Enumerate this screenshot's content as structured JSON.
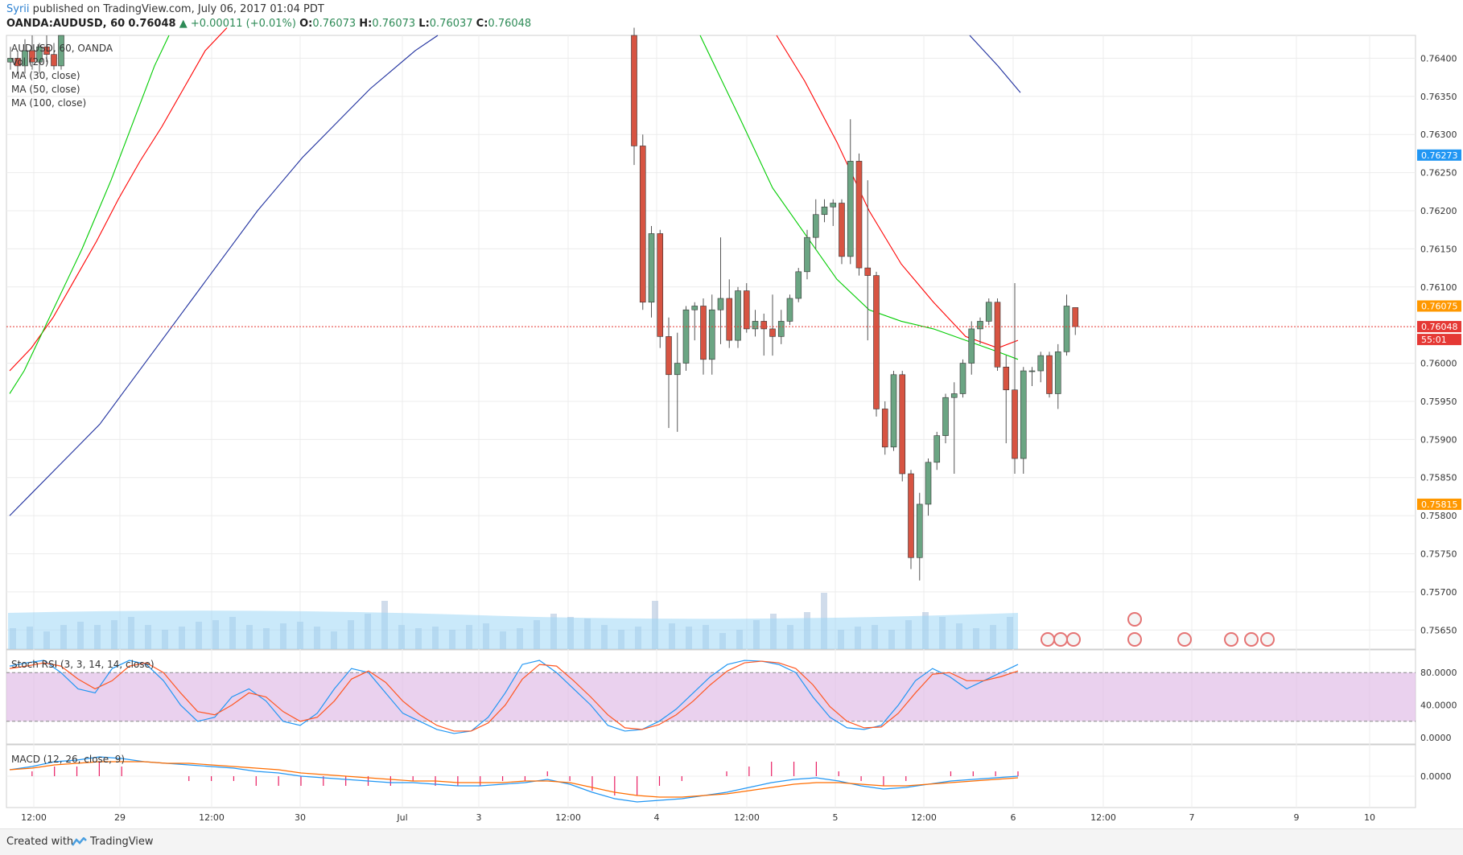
{
  "header": {
    "user": "Syrii",
    "published": "published on TradingView.com, July 06, 2017 01:04 PDT",
    "symbol": "OANDA:AUDUSD, 60",
    "last": "0.76048",
    "change": "+0.00011 (+0.01%)",
    "o_label": "O:",
    "o_val": "0.76073",
    "h_label": "H:",
    "h_val": "0.76073",
    "l_label": "L:",
    "l_val": "0.76037",
    "c_label": "C:",
    "c_val": "0.76048"
  },
  "legend": {
    "symbol": "AUDUSD, 60, OANDA",
    "vol": "Vol (20)",
    "ma30": "MA (30, close)",
    "ma50": "MA (50, close)",
    "ma100": "MA (100, close)"
  },
  "indicators": {
    "stoch_label": "Stoch RSI (3, 3, 14, 14, close)",
    "macd_label": "MACD (12, 26, close, 9)"
  },
  "badges": {
    "ma_red": "0.76273",
    "ma_orange": "0.76075",
    "price": "0.76048",
    "countdown": "55:01",
    "ma_low": "0.75815"
  },
  "footer": {
    "created": "Created with",
    "brand": "TradingView"
  },
  "colors": {
    "up": "#6ba583",
    "down": "#d75442",
    "ma30": "#ff0000",
    "ma50": "#00cc00",
    "ma100": "#1e2f9e",
    "volume_ma": "#9fd7f5",
    "stoch_k": "#2196f3",
    "stoch_d": "#ff5722",
    "stoch_band": "#e1bee7",
    "macd": "#2196f3",
    "signal": "#ff6d00",
    "hist": "#e91e63"
  },
  "chart_data": [
    {
      "type": "candlestick",
      "title": "OANDA:AUDUSD, 60",
      "y_ticks": [
        "0.76400",
        "0.76350",
        "0.76300",
        "0.76250",
        "0.76200",
        "0.76150",
        "0.76100",
        "0.76000",
        "0.75950",
        "0.75900",
        "0.75850",
        "0.75800",
        "0.75750",
        "0.75700",
        "0.75650"
      ],
      "x_ticks": [
        "12:00",
        "29",
        "12:00",
        "30",
        "Jul",
        "3",
        "12:00",
        "4",
        "12:00",
        "5",
        "12:00",
        "6",
        "12:00",
        "7",
        "9",
        "10"
      ],
      "ylim": [
        0.75625,
        0.7643
      ],
      "candles": [
        {
          "o": 0.76395,
          "h": 0.76415,
          "l": 0.76385,
          "c": 0.764
        },
        {
          "o": 0.764,
          "h": 0.7641,
          "l": 0.7638,
          "c": 0.7639
        },
        {
          "o": 0.7639,
          "h": 0.76425,
          "l": 0.7638,
          "c": 0.7641
        },
        {
          "o": 0.7641,
          "h": 0.7643,
          "l": 0.76385,
          "c": 0.76395
        },
        {
          "o": 0.76395,
          "h": 0.7642,
          "l": 0.7638,
          "c": 0.76415
        },
        {
          "o": 0.76415,
          "h": 0.7643,
          "l": 0.76395,
          "c": 0.76405
        },
        {
          "o": 0.76405,
          "h": 0.7642,
          "l": 0.76385,
          "c": 0.7639
        },
        {
          "o": 0.7639,
          "h": 0.7643,
          "l": 0.76385,
          "c": 0.7643
        },
        {
          "o": 0.7643,
          "h": 0.7644,
          "l": 0.7626,
          "c": 0.76285
        },
        {
          "o": 0.76285,
          "h": 0.763,
          "l": 0.7607,
          "c": 0.7608
        },
        {
          "o": 0.7608,
          "h": 0.7618,
          "l": 0.7606,
          "c": 0.7617
        },
        {
          "o": 0.7617,
          "h": 0.76175,
          "l": 0.7602,
          "c": 0.76035
        },
        {
          "o": 0.76035,
          "h": 0.7606,
          "l": 0.75915,
          "c": 0.75985
        },
        {
          "o": 0.75985,
          "h": 0.7604,
          "l": 0.7591,
          "c": 0.76
        },
        {
          "o": 0.76,
          "h": 0.76075,
          "l": 0.7599,
          "c": 0.7607
        },
        {
          "o": 0.7607,
          "h": 0.7608,
          "l": 0.7603,
          "c": 0.76075
        },
        {
          "o": 0.76075,
          "h": 0.76085,
          "l": 0.75985,
          "c": 0.76005
        },
        {
          "o": 0.76005,
          "h": 0.7609,
          "l": 0.75985,
          "c": 0.7607
        },
        {
          "o": 0.7607,
          "h": 0.76165,
          "l": 0.76025,
          "c": 0.76085
        },
        {
          "o": 0.76085,
          "h": 0.7611,
          "l": 0.7602,
          "c": 0.7603
        },
        {
          "o": 0.7603,
          "h": 0.761,
          "l": 0.7602,
          "c": 0.76095
        },
        {
          "o": 0.76095,
          "h": 0.76105,
          "l": 0.7604,
          "c": 0.76045
        },
        {
          "o": 0.76045,
          "h": 0.7607,
          "l": 0.76035,
          "c": 0.76055
        },
        {
          "o": 0.76055,
          "h": 0.76065,
          "l": 0.7601,
          "c": 0.76045
        },
        {
          "o": 0.76045,
          "h": 0.7609,
          "l": 0.7601,
          "c": 0.76035
        },
        {
          "o": 0.76035,
          "h": 0.7607,
          "l": 0.76025,
          "c": 0.76055
        },
        {
          "o": 0.76055,
          "h": 0.7609,
          "l": 0.7605,
          "c": 0.76085
        },
        {
          "o": 0.76085,
          "h": 0.76125,
          "l": 0.7608,
          "c": 0.7612
        },
        {
          "o": 0.7612,
          "h": 0.76175,
          "l": 0.7611,
          "c": 0.76165
        },
        {
          "o": 0.76165,
          "h": 0.76215,
          "l": 0.7615,
          "c": 0.76195
        },
        {
          "o": 0.76195,
          "h": 0.76215,
          "l": 0.76185,
          "c": 0.76205
        },
        {
          "o": 0.76205,
          "h": 0.76215,
          "l": 0.7618,
          "c": 0.7621
        },
        {
          "o": 0.7621,
          "h": 0.76215,
          "l": 0.7613,
          "c": 0.7614
        },
        {
          "o": 0.7614,
          "h": 0.7632,
          "l": 0.7613,
          "c": 0.76265
        },
        {
          "o": 0.76265,
          "h": 0.76275,
          "l": 0.76115,
          "c": 0.76125
        },
        {
          "o": 0.76125,
          "h": 0.7624,
          "l": 0.7603,
          "c": 0.76115
        },
        {
          "o": 0.76115,
          "h": 0.7612,
          "l": 0.7593,
          "c": 0.7594
        },
        {
          "o": 0.7594,
          "h": 0.7595,
          "l": 0.7588,
          "c": 0.7589
        },
        {
          "o": 0.7589,
          "h": 0.7599,
          "l": 0.75885,
          "c": 0.75985
        },
        {
          "o": 0.75985,
          "h": 0.7599,
          "l": 0.75845,
          "c": 0.75855
        },
        {
          "o": 0.75855,
          "h": 0.7586,
          "l": 0.7573,
          "c": 0.75745
        },
        {
          "o": 0.75745,
          "h": 0.7583,
          "l": 0.75715,
          "c": 0.75815
        },
        {
          "o": 0.75815,
          "h": 0.75875,
          "l": 0.758,
          "c": 0.7587
        },
        {
          "o": 0.7587,
          "h": 0.7591,
          "l": 0.7586,
          "c": 0.75905
        },
        {
          "o": 0.75905,
          "h": 0.7596,
          "l": 0.75895,
          "c": 0.75955
        },
        {
          "o": 0.75955,
          "h": 0.75975,
          "l": 0.75855,
          "c": 0.7596
        },
        {
          "o": 0.7596,
          "h": 0.76005,
          "l": 0.75955,
          "c": 0.76
        },
        {
          "o": 0.76,
          "h": 0.76055,
          "l": 0.75985,
          "c": 0.76045
        },
        {
          "o": 0.76045,
          "h": 0.7606,
          "l": 0.76025,
          "c": 0.76055
        },
        {
          "o": 0.76055,
          "h": 0.76085,
          "l": 0.7605,
          "c": 0.7608
        },
        {
          "o": 0.7608,
          "h": 0.76085,
          "l": 0.7599,
          "c": 0.75995
        },
        {
          "o": 0.75995,
          "h": 0.7601,
          "l": 0.75895,
          "c": 0.75965
        },
        {
          "o": 0.75965,
          "h": 0.76105,
          "l": 0.75855,
          "c": 0.75875
        },
        {
          "o": 0.75875,
          "h": 0.75995,
          "l": 0.75855,
          "c": 0.7599
        },
        {
          "o": 0.7599,
          "h": 0.75995,
          "l": 0.7597,
          "c": 0.7599
        },
        {
          "o": 0.7599,
          "h": 0.76015,
          "l": 0.75975,
          "c": 0.7601
        },
        {
          "o": 0.7601,
          "h": 0.76015,
          "l": 0.75955,
          "c": 0.7596
        },
        {
          "o": 0.7596,
          "h": 0.76025,
          "l": 0.7594,
          "c": 0.76015
        },
        {
          "o": 0.76015,
          "h": 0.7609,
          "l": 0.7601,
          "c": 0.76075
        },
        {
          "o": 0.76073,
          "h": 0.76073,
          "l": 0.76037,
          "c": 0.76048
        }
      ],
      "ma30": [
        0.7599,
        0.7602,
        0.7606,
        0.7611,
        0.7616,
        0.76215,
        0.76265,
        0.7631,
        0.7636,
        0.7641,
        0.7644
      ],
      "ma50": [
        0.7596,
        0.7599,
        0.7603,
        0.7607,
        0.7611,
        0.7615,
        0.76195,
        0.7624,
        0.7629,
        0.7634,
        0.7639,
        0.7643
      ],
      "ma100": [
        0.758,
        0.7583,
        0.7586,
        0.7589,
        0.7592,
        0.7596,
        0.76,
        0.7604,
        0.7608,
        0.7612,
        0.7616,
        0.762,
        0.76235,
        0.7627,
        0.763,
        0.7633,
        0.7636,
        0.76385,
        0.7641,
        0.7643
      ]
    },
    {
      "type": "line",
      "title": "Stoch RSI (3, 3, 14, 14, close)",
      "y_ticks": [
        "80.0000",
        "40.0000",
        "0.0000"
      ],
      "ylim": [
        0,
        100
      ],
      "series": [
        {
          "name": "K",
          "values": [
            88,
            92,
            95,
            80,
            60,
            55,
            85,
            95,
            90,
            70,
            40,
            20,
            25,
            50,
            60,
            45,
            20,
            15,
            30,
            60,
            85,
            80,
            55,
            30,
            20,
            10,
            5,
            8,
            25,
            55,
            90,
            95,
            80,
            60,
            40,
            15,
            8,
            10,
            20,
            35,
            55,
            75,
            90,
            95,
            94,
            90,
            80,
            50,
            25,
            12,
            10,
            15,
            40,
            70,
            85,
            75,
            60,
            70,
            80,
            90
          ]
        },
        {
          "name": "D",
          "values": [
            85,
            88,
            92,
            88,
            72,
            60,
            70,
            88,
            92,
            80,
            55,
            32,
            28,
            40,
            55,
            50,
            32,
            20,
            25,
            45,
            72,
            82,
            68,
            45,
            28,
            15,
            8,
            8,
            18,
            40,
            72,
            90,
            88,
            70,
            50,
            28,
            12,
            10,
            16,
            28,
            45,
            65,
            82,
            92,
            94,
            92,
            85,
            65,
            38,
            20,
            12,
            13,
            30,
            55,
            78,
            80,
            70,
            70,
            75,
            82
          ]
        }
      ]
    },
    {
      "type": "line",
      "title": "MACD (12, 26, close, 9)",
      "y_ticks": [
        "0.0000"
      ],
      "series": [
        {
          "name": "MACD",
          "values": [
            0.0004,
            0.0006,
            0.0009,
            0.001,
            0.0012,
            0.0011,
            0.0009,
            0.0008,
            0.0007,
            0.0006,
            0.0005,
            0.0003,
            0.0002,
            0.0,
            -0.0001,
            -0.0002,
            -0.0003,
            -0.0004,
            -0.0004,
            -0.0005,
            -0.0006,
            -0.0006,
            -0.0005,
            -0.0004,
            -0.0002,
            -0.0005,
            -0.001,
            -0.0014,
            -0.0016,
            -0.0015,
            -0.0014,
            -0.0012,
            -0.001,
            -0.0007,
            -0.0004,
            -0.0002,
            -0.0001,
            -0.0003,
            -0.0006,
            -0.0008,
            -0.0007,
            -0.0005,
            -0.0003,
            -0.0002,
            -0.0001,
            0.0
          ]
        },
        {
          "name": "Signal",
          "values": [
            0.0004,
            0.0005,
            0.0007,
            0.0008,
            0.0009,
            0.0009,
            0.0009,
            0.0008,
            0.0008,
            0.0007,
            0.0006,
            0.0005,
            0.0004,
            0.0002,
            0.0001,
            0.0,
            -0.0001,
            -0.0002,
            -0.0003,
            -0.0003,
            -0.0004,
            -0.0004,
            -0.0004,
            -0.0003,
            -0.0003,
            -0.0004,
            -0.0007,
            -0.001,
            -0.0012,
            -0.0013,
            -0.0013,
            -0.0012,
            -0.0011,
            -0.0009,
            -0.0007,
            -0.0005,
            -0.0004,
            -0.0004,
            -0.0005,
            -0.0006,
            -0.0006,
            -0.0005,
            -0.0004,
            -0.0003,
            -0.0002,
            -0.0001
          ]
        }
      ]
    }
  ]
}
